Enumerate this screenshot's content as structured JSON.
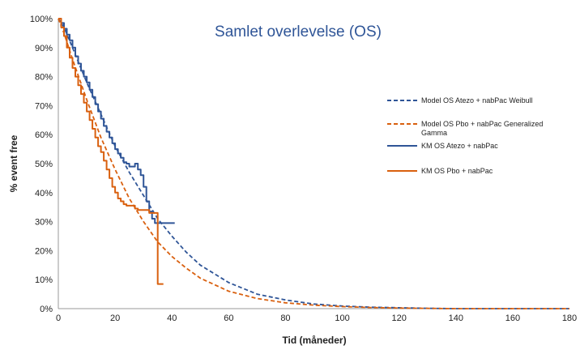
{
  "chart_data": {
    "type": "line",
    "title": "Samlet overlevelse (OS)",
    "xlabel": "Tid (måneder)",
    "ylabel": "% event free",
    "xlim": [
      0,
      180
    ],
    "ylim": [
      0,
      1
    ],
    "xticks": [
      "0",
      "20",
      "40",
      "60",
      "80",
      "100",
      "120",
      "140",
      "160",
      "180"
    ],
    "yticks": [
      "0%",
      "10%",
      "20%",
      "30%",
      "40%",
      "50%",
      "60%",
      "70%",
      "80%",
      "90%",
      "100%"
    ],
    "grid": false,
    "legend_position": "right",
    "colors": {
      "atezo": "#2f5597",
      "pbo": "#d9600f"
    },
    "series": [
      {
        "name": "Model OS Atezo + nabPac Weibull",
        "legend_lines": [
          "Model OS Atezo + nabPac Weibull"
        ],
        "style": "dashed",
        "color": "#2f5597",
        "x": [
          0,
          2,
          5,
          10,
          15,
          20,
          25,
          30,
          35,
          40,
          45,
          50,
          60,
          70,
          80,
          90,
          100,
          110,
          120,
          130,
          140,
          160,
          180
        ],
        "y": [
          1.0,
          0.97,
          0.9,
          0.78,
          0.67,
          0.56,
          0.47,
          0.39,
          0.31,
          0.25,
          0.195,
          0.15,
          0.09,
          0.05,
          0.03,
          0.016,
          0.009,
          0.005,
          0.003,
          0.001,
          0.0,
          0.0,
          0.0
        ]
      },
      {
        "name": "Model OS Pbo + nabPac Generalized Gamma",
        "legend_lines": [
          "Model OS Pbo + nabPac Generalized",
          "Gamma"
        ],
        "style": "dashed",
        "color": "#d9600f",
        "x": [
          0,
          2,
          5,
          10,
          15,
          20,
          25,
          30,
          35,
          40,
          45,
          50,
          60,
          70,
          80,
          90,
          100,
          110,
          120,
          140,
          160,
          180
        ],
        "y": [
          1.0,
          0.95,
          0.86,
          0.72,
          0.59,
          0.48,
          0.38,
          0.3,
          0.23,
          0.18,
          0.14,
          0.105,
          0.06,
          0.035,
          0.02,
          0.012,
          0.007,
          0.004,
          0.002,
          0.0,
          0.0,
          0.0
        ]
      },
      {
        "name": "KM OS Atezo + nabPac",
        "legend_lines": [
          "KM OS Atezo + nabPac"
        ],
        "style": "step",
        "color": "#2f5597",
        "x": [
          0,
          1,
          2,
          3,
          4,
          5,
          6,
          7,
          8,
          9,
          10,
          11,
          12,
          13,
          14,
          15,
          16,
          17,
          18,
          19,
          20,
          21,
          22,
          23,
          24,
          25,
          26,
          27,
          28,
          29,
          30,
          31,
          32,
          33,
          34,
          35,
          36,
          37,
          38,
          39,
          40,
          41
        ],
        "y": [
          1.0,
          0.985,
          0.965,
          0.945,
          0.925,
          0.9,
          0.87,
          0.845,
          0.82,
          0.8,
          0.78,
          0.755,
          0.73,
          0.705,
          0.68,
          0.655,
          0.63,
          0.61,
          0.59,
          0.57,
          0.55,
          0.535,
          0.52,
          0.505,
          0.5,
          0.49,
          0.49,
          0.5,
          0.48,
          0.46,
          0.42,
          0.37,
          0.335,
          0.31,
          0.295,
          0.295,
          0.295,
          0.295,
          0.295,
          0.295,
          0.295,
          0.295
        ]
      },
      {
        "name": "KM OS Pbo + nabPac",
        "legend_lines": [
          "KM OS Pbo + nabPac"
        ],
        "style": "step",
        "color": "#d9600f",
        "x": [
          0,
          1,
          2,
          3,
          4,
          5,
          6,
          7,
          8,
          9,
          10,
          11,
          12,
          13,
          14,
          15,
          16,
          17,
          18,
          19,
          20,
          21,
          22,
          23,
          24,
          25,
          26,
          27,
          28,
          29,
          30,
          31,
          32,
          33,
          34,
          35,
          36,
          37
        ],
        "y": [
          1.0,
          0.97,
          0.94,
          0.9,
          0.865,
          0.83,
          0.8,
          0.77,
          0.74,
          0.71,
          0.68,
          0.65,
          0.62,
          0.59,
          0.56,
          0.54,
          0.51,
          0.48,
          0.45,
          0.42,
          0.4,
          0.38,
          0.37,
          0.36,
          0.355,
          0.355,
          0.355,
          0.345,
          0.34,
          0.34,
          0.34,
          0.34,
          0.33,
          0.33,
          0.33,
          0.085,
          0.085,
          0.085
        ]
      }
    ]
  }
}
